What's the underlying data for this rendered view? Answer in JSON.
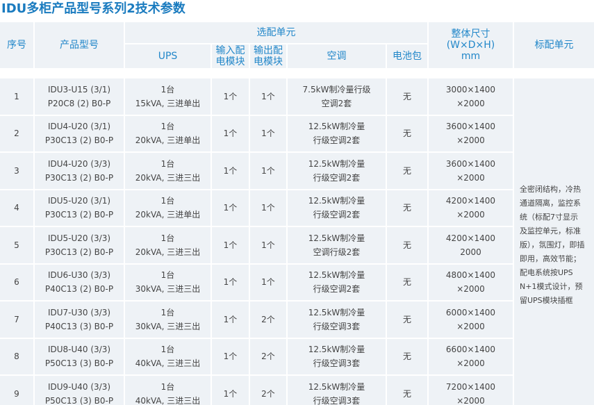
{
  "title": "IDU多柜产品型号系列2技术参数",
  "header": {
    "cells": [
      [
        "序号"
      ],
      [
        "产品型号"
      ],
      [
        "选配单元"
      ],
      [
        "整体尺寸",
        "(W×D×H)",
        "mm"
      ],
      [
        "标配单元"
      ],
      [
        "UPS"
      ],
      [
        "输入配",
        "电模块"
      ],
      [
        "输出配",
        "电模块"
      ],
      [
        "空调"
      ],
      [
        "电池包"
      ]
    ]
  },
  "table": {
    "rows": [
      [
        [
          "1"
        ],
        [
          "IDU3-U15 (3/1)",
          "P20C8 (2) B0-P"
        ],
        [
          "1台",
          "15kVA, 三进单出"
        ],
        [
          "1个"
        ],
        [
          "1个"
        ],
        [
          "7.5kW制冷量行级",
          "空调2套"
        ],
        [
          "无"
        ],
        [
          "3000×1400",
          "×2000"
        ]
      ],
      [
        [
          "2"
        ],
        [
          "IDU4-U20 (3/1)",
          "P30C13 (2) B0-P"
        ],
        [
          "1台",
          "20kVA, 三进单出"
        ],
        [
          "1个"
        ],
        [
          "1个"
        ],
        [
          "12.5kW制冷量",
          "行级空调2套"
        ],
        [
          "无"
        ],
        [
          "3600×1400",
          "×2000"
        ]
      ],
      [
        [
          "3"
        ],
        [
          "IDU4-U20 (3/3)",
          "P30C13 (2) B0-P"
        ],
        [
          "1台",
          "20kVA, 三进三出"
        ],
        [
          "1个"
        ],
        [
          "1个"
        ],
        [
          "12.5kW制冷量",
          "行级空调2套"
        ],
        [
          "无"
        ],
        [
          "3600×1400",
          "×2000"
        ]
      ],
      [
        [
          "4"
        ],
        [
          "IDU5-U20 (3/1)",
          "P30C13 (2) B0-P"
        ],
        [
          "1台",
          "20kVA, 三进单出"
        ],
        [
          "1个"
        ],
        [
          "1个"
        ],
        [
          "12.5kW制冷量",
          "行级空调2套"
        ],
        [
          "无"
        ],
        [
          "4200×1400",
          "×2000"
        ]
      ],
      [
        [
          "5"
        ],
        [
          "IDU5-U20 (3/3)",
          "P30C13 (2) B0-P"
        ],
        [
          "1台",
          "20kVA, 三进三出"
        ],
        [
          "1个"
        ],
        [
          "1个"
        ],
        [
          "12.5kW制冷量",
          "空调行级2套"
        ],
        [
          "无"
        ],
        [
          "4200×1400",
          "2000"
        ]
      ],
      [
        [
          "6"
        ],
        [
          "IDU6-U30 (3/3)",
          "P40C13 (2) B0-P"
        ],
        [
          "1台",
          "30kVA, 三进三出"
        ],
        [
          "1个"
        ],
        [
          "1个"
        ],
        [
          "12.5kW制冷量",
          "行级空调2套"
        ],
        [
          "无"
        ],
        [
          "4800×1400",
          "×2000"
        ]
      ],
      [
        [
          "7"
        ],
        [
          "IDU7-U30 (3/3)",
          "P40C13 (3) B0-P"
        ],
        [
          "1台",
          "30kVA, 三进三出"
        ],
        [
          "1个"
        ],
        [
          "2个"
        ],
        [
          "12.5kW制冷量",
          "行级空调3套"
        ],
        [
          "无"
        ],
        [
          "6000×1400",
          "×2000"
        ]
      ],
      [
        [
          "8"
        ],
        [
          "IDU8-U40 (3/3)",
          "P50C13 (3) B0-P"
        ],
        [
          "1台",
          "40kVA, 三进三出"
        ],
        [
          "1个"
        ],
        [
          "2个"
        ],
        [
          "12.5kW制冷量",
          "行级空调3套"
        ],
        [
          "无"
        ],
        [
          "6600×1400",
          "×2000"
        ]
      ],
      [
        [
          "9"
        ],
        [
          "IDU9-U40 (3/3)",
          "P50C13 (3) B0-P"
        ],
        [
          "1台",
          "40kVA, 三进三出"
        ],
        [
          "1个"
        ],
        [
          "2个"
        ],
        [
          "12.5kW制冷量",
          "行级空调3套"
        ],
        [
          "无"
        ],
        [
          "7200×1400",
          "×2000"
        ]
      ]
    ],
    "note": [
      "全密闭结构，冷热",
      "通道隔离，监控系",
      "统（标配7寸显示",
      "及监控单元，标准",
      "版），氛围灯，即插",
      "即用，高效节能；",
      "配电系统按UPS",
      "N+1模式设计，预",
      "留UPS模块插框"
    ]
  }
}
